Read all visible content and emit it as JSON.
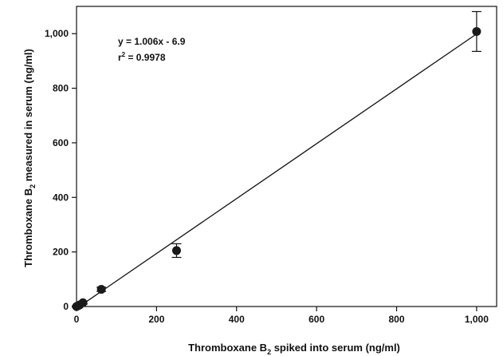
{
  "chart_data": {
    "type": "scatter",
    "xlabel": {
      "pre": "Thromboxane B",
      "sub": "2",
      "post": " spiked into serum (ng/ml)"
    },
    "ylabel": {
      "pre": "Thromboxane B",
      "sub": "2",
      "post": " measured in serum (ng/ml)"
    },
    "xlim": [
      0,
      1050
    ],
    "ylim": [
      0,
      1100
    ],
    "xticks": [
      0,
      200,
      400,
      600,
      800,
      1000
    ],
    "xtick_labels": [
      "0",
      "200",
      "400",
      "600",
      "800",
      "1,000"
    ],
    "yticks": [
      0,
      200,
      400,
      600,
      800,
      1000
    ],
    "ytick_labels": [
      "0",
      "200",
      "400",
      "600",
      "800",
      "1,000"
    ],
    "grid": false,
    "annotation": {
      "equation": "y = 1.006x - 6.9",
      "r2_prefix": "r",
      "r2_sup": "2",
      "r2_value": " = 0.9978"
    },
    "fit_line": {
      "slope": 1.006,
      "intercept": -6.9,
      "x_range": [
        7,
        1000
      ]
    },
    "points": [
      {
        "x": 0,
        "y": 0,
        "err": 2
      },
      {
        "x": 4,
        "y": 3,
        "err": 2
      },
      {
        "x": 8,
        "y": 6,
        "err": 3
      },
      {
        "x": 16,
        "y": 14,
        "err": 5
      },
      {
        "x": 62,
        "y": 63,
        "err": 8
      },
      {
        "x": 250,
        "y": 205,
        "err": 25
      },
      {
        "x": 1000,
        "y": 1008,
        "err": 73
      }
    ],
    "colors": {
      "marker": "#1a1a1a",
      "line": "#111111"
    }
  }
}
